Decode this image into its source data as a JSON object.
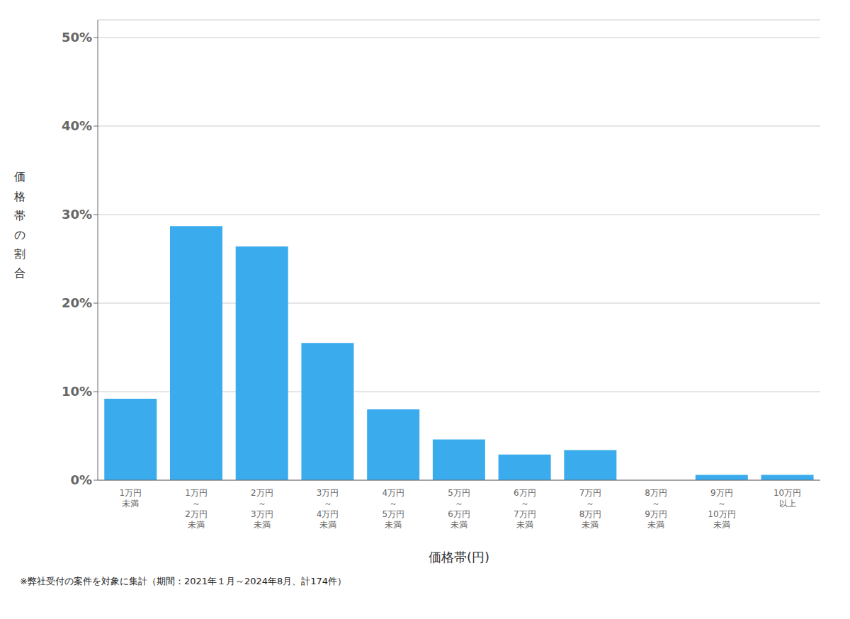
{
  "chart_data": {
    "type": "bar",
    "categories": [
      "1万円\n未満",
      "1万円\n～\n2万円\n未満",
      "2万円\n～\n3万円\n未満",
      "3万円\n～\n4万円\n未満",
      "4万円\n～\n5万円\n未満",
      "5万円\n～\n6万円\n未満",
      "6万円\n～\n7万円\n未満",
      "7万円\n～\n8万円\n未満",
      "8万円\n～\n9万円\n未満",
      "9万円\n～\n10万円\n未満",
      "10万円\n以上"
    ],
    "values": [
      9.2,
      28.7,
      26.4,
      15.5,
      8.0,
      4.6,
      2.9,
      3.4,
      0.0,
      0.6,
      0.6
    ],
    "color": "#3aacee",
    "x_label": "価格帯(円)",
    "y_label": "価\n格\n帯\nの\n割\n合",
    "annotations": [
      "※弊社受付の案件を対象に集計（期間：2021年１月～2024年8月、計174件）"
    ],
    "ylim": [
      0,
      52
    ],
    "yticks": [
      {
        "value": 0,
        "label": "0%"
      },
      {
        "value": 10,
        "label": "10%"
      },
      {
        "value": 20,
        "label": "20%"
      },
      {
        "value": 30,
        "label": "30%"
      },
      {
        "value": 40,
        "label": "40%"
      },
      {
        "value": 50,
        "label": "50%"
      }
    ],
    "grid": true
  }
}
